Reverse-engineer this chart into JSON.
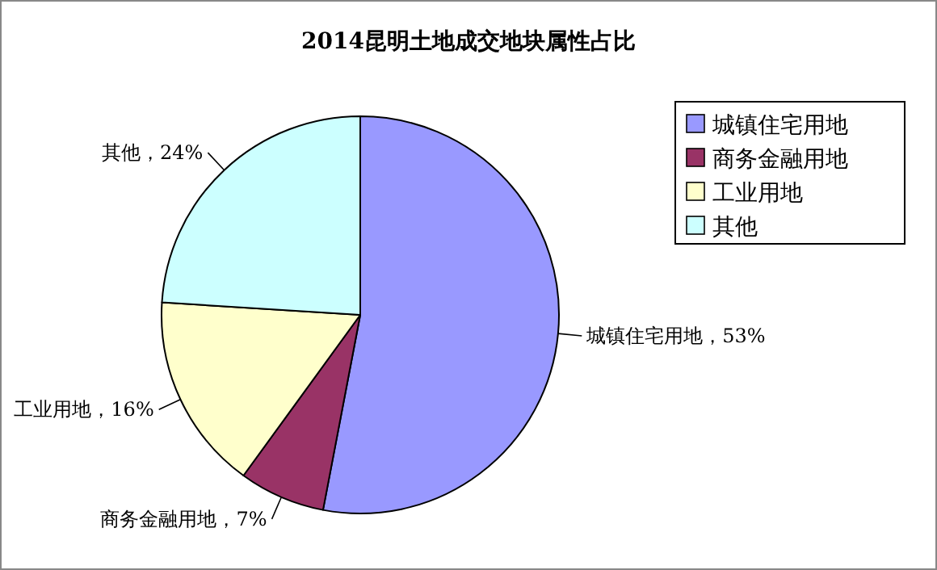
{
  "chart_data": {
    "type": "pie",
    "title": "2014昆明土地成交地块属性占比",
    "categories": [
      "城镇住宅用地",
      "商务金融用地",
      "工业用地",
      "其他"
    ],
    "values": [
      53,
      7,
      16,
      24
    ],
    "value_labels": [
      "城镇住宅用地，53%",
      "商务金融用地，7%",
      "工业用地，16%",
      "其他，24%"
    ],
    "colors": [
      "#9999ff",
      "#993366",
      "#ffffcc",
      "#ccffff"
    ],
    "legend": "right"
  }
}
